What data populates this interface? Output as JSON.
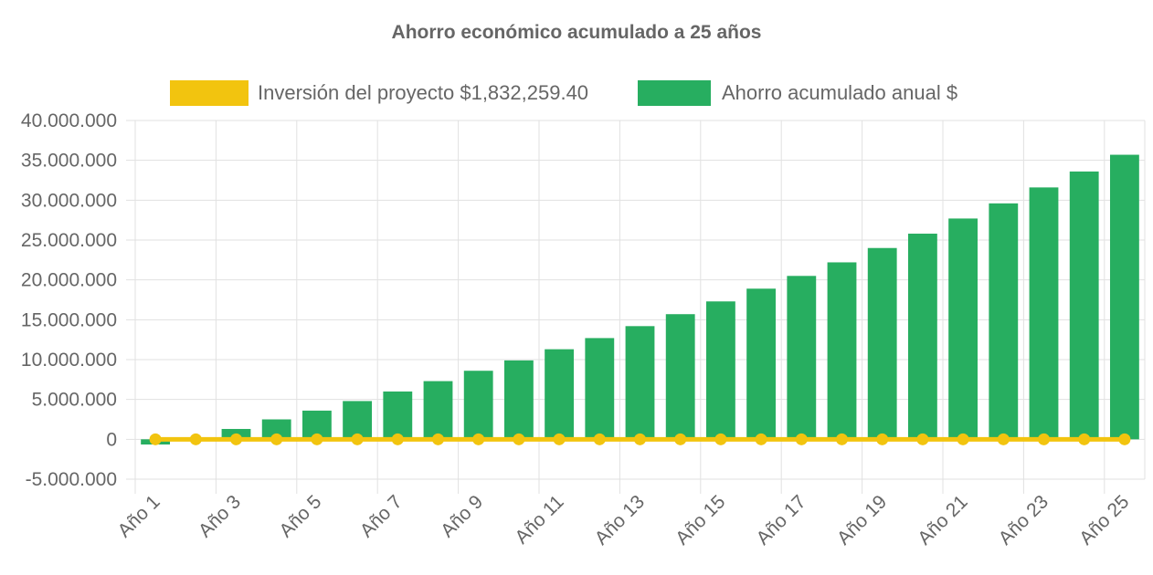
{
  "chart_data": {
    "type": "bar",
    "title": "Ahorro económico acumulado a 25 años",
    "xlabel": "",
    "ylabel": "",
    "ylim": [
      -5000000,
      40000000
    ],
    "yticks": [
      40000000,
      35000000,
      30000000,
      25000000,
      20000000,
      15000000,
      10000000,
      5000000,
      0,
      -5000000
    ],
    "ytick_labels": [
      "40.000.000",
      "35.000.000",
      "30.000.000",
      "25.000.000",
      "20.000.000",
      "15.000.000",
      "10.000.000",
      "5.000.000",
      "0",
      "-5.000.000"
    ],
    "categories": [
      "Año 1",
      "Año 2",
      "Año 3",
      "Año 4",
      "Año 5",
      "Año 6",
      "Año 7",
      "Año 8",
      "Año 9",
      "Año 10",
      "Año 11",
      "Año 12",
      "Año 13",
      "Año 14",
      "Año 15",
      "Año 16",
      "Año 17",
      "Año 18",
      "Año 19",
      "Año 20",
      "Año 21",
      "Año 22",
      "Año 23",
      "Año 24",
      "Año 25"
    ],
    "xtick_labels": [
      "Año 1",
      "Año 3",
      "Año 5",
      "Año 7",
      "Año 9",
      "Año 11",
      "Año 13",
      "Año 15",
      "Año 17",
      "Año 19",
      "Año 21",
      "Año 23",
      "Año 25"
    ],
    "grid": true,
    "legend_position": "top",
    "series": [
      {
        "name": "Inversión del proyecto $1,832,259.40",
        "type": "line",
        "color": "#f2c40f",
        "values": [
          0,
          0,
          0,
          0,
          0,
          0,
          0,
          0,
          0,
          0,
          0,
          0,
          0,
          0,
          0,
          0,
          0,
          0,
          0,
          0,
          0,
          0,
          0,
          0,
          0
        ]
      },
      {
        "name": "Ahorro acumulado anual $",
        "type": "bar",
        "color": "#27ae60",
        "values": [
          -650000,
          50000,
          1300000,
          2500000,
          3600000,
          4800000,
          6000000,
          7300000,
          8600000,
          9900000,
          11300000,
          12700000,
          14200000,
          15700000,
          17300000,
          18900000,
          20500000,
          22200000,
          24000000,
          25800000,
          27700000,
          29600000,
          31600000,
          33600000,
          35700000
        ]
      }
    ]
  }
}
